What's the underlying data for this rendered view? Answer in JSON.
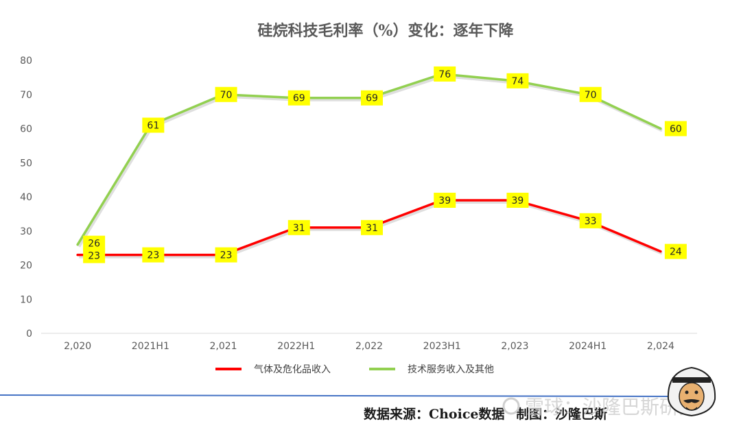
{
  "chart_data": {
    "type": "line",
    "title": "硅烷科技毛利率（%）变化：逐年下降",
    "categories": [
      "2,020",
      "2021H1",
      "2,021",
      "2022H1",
      "2,022",
      "2023H1",
      "2,023",
      "2024H1",
      "2,024"
    ],
    "ylim": [
      0,
      80
    ],
    "yticks": [
      0,
      10,
      20,
      30,
      40,
      50,
      60,
      70,
      80
    ],
    "grid": false,
    "legend_position": "bottom",
    "data_labels": true,
    "series": [
      {
        "name": "气体及危化品收入",
        "color": "#ff0000",
        "values": [
          23,
          23,
          23,
          31,
          31,
          39,
          39,
          33,
          24
        ]
      },
      {
        "name": "技术服务收入及其他",
        "color": "#92d050",
        "values": [
          26,
          61,
          70,
          69,
          69,
          76,
          74,
          70,
          60
        ]
      }
    ],
    "label_bg_color": "#ffff00"
  },
  "footer": {
    "source_text": "数据来源：Choice数据",
    "credit_text": "制图：沙隆巴斯"
  },
  "watermark": {
    "text": "雪球：沙隆巴斯研究"
  }
}
